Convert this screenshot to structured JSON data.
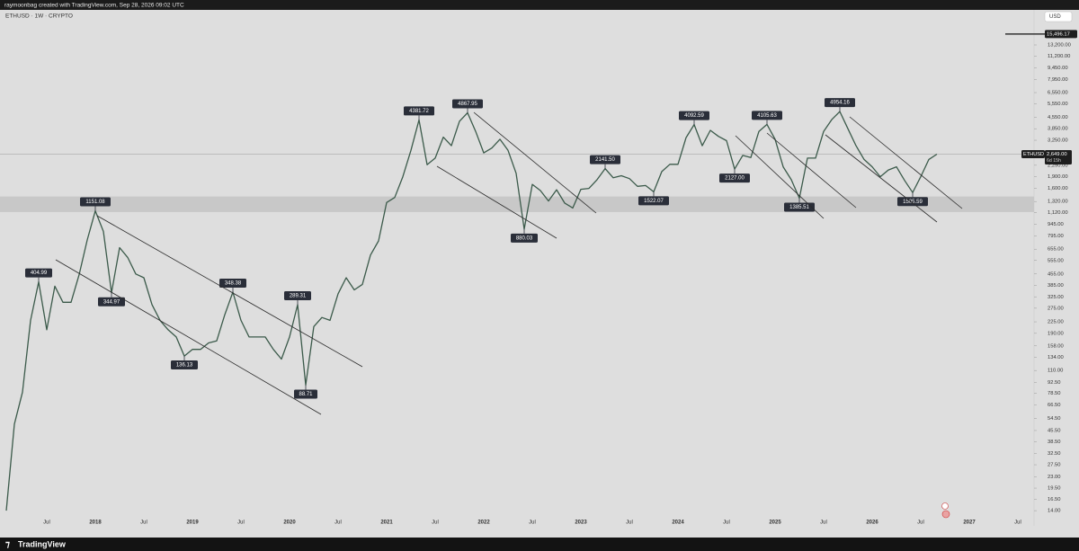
{
  "header": {
    "credit": "raymoonbag created with TradingView.com, Sep 28, 2026 09:02 UTC",
    "currency": "USD"
  },
  "footer": {
    "brand": "TradingView"
  },
  "chart_data": {
    "type": "line",
    "title": "ETHUSD · 1W · CRYPTO",
    "log_scale": true,
    "grid": false,
    "ylim": [
      11.2,
      22400
    ],
    "yticks": [
      {
        "value": 13200,
        "label": "13,200.00"
      },
      {
        "value": 11200,
        "label": "11,200.00"
      },
      {
        "value": 9450,
        "label": "9,450.00"
      },
      {
        "value": 7950,
        "label": "7,950.00"
      },
      {
        "value": 6550,
        "label": "6,550.00"
      },
      {
        "value": 5550,
        "label": "5,550.00"
      },
      {
        "value": 4550,
        "label": "4,550.00"
      },
      {
        "value": 3850,
        "label": "3,850.00"
      },
      {
        "value": 3250,
        "label": "3,250.00"
      },
      {
        "value": 2250,
        "label": "2,250.00"
      },
      {
        "value": 1900,
        "label": "1,900.00"
      },
      {
        "value": 1600,
        "label": "1,600.00"
      },
      {
        "value": 1320,
        "label": "1,320.00"
      },
      {
        "value": 1120,
        "label": "1,120.00"
      },
      {
        "value": 945,
        "label": "945.00"
      },
      {
        "value": 795,
        "label": "795.00"
      },
      {
        "value": 655,
        "label": "655.00"
      },
      {
        "value": 555,
        "label": "555.00"
      },
      {
        "value": 455,
        "label": "455.00"
      },
      {
        "value": 385,
        "label": "385.00"
      },
      {
        "value": 325,
        "label": "325.00"
      },
      {
        "value": 275,
        "label": "275.00"
      },
      {
        "value": 225,
        "label": "225.00"
      },
      {
        "value": 190,
        "label": "190.00"
      },
      {
        "value": 158,
        "label": "158.00"
      },
      {
        "value": 134,
        "label": "134.00"
      },
      {
        "value": 110,
        "label": "110.00"
      },
      {
        "value": 92.5,
        "label": "92.50"
      },
      {
        "value": 78.5,
        "label": "78.50"
      },
      {
        "value": 66.5,
        "label": "66.50"
      },
      {
        "value": 54.5,
        "label": "54.50"
      },
      {
        "value": 45.5,
        "label": "45.50"
      },
      {
        "value": 38.5,
        "label": "38.50"
      },
      {
        "value": 32.5,
        "label": "32.50"
      },
      {
        "value": 27.5,
        "label": "27.50"
      },
      {
        "value": 23,
        "label": "23.00"
      },
      {
        "value": 19.5,
        "label": "19.50"
      },
      {
        "value": 16.5,
        "label": "16.50"
      },
      {
        "value": 14,
        "label": "14.00"
      }
    ],
    "marker": {
      "value": 15496.17,
      "label": "15,496.17"
    },
    "last_price": {
      "symbol": "ETHUSD",
      "value": 2649,
      "label": "2,649.00",
      "countdown": "6d 15h"
    },
    "support_zone": [
      1130,
      1420
    ],
    "categories": [
      null,
      null,
      null,
      null,
      null,
      "Jul",
      null,
      null,
      null,
      null,
      null,
      "2018",
      null,
      null,
      null,
      null,
      null,
      "Jul",
      null,
      null,
      null,
      null,
      null,
      "2019",
      null,
      null,
      null,
      null,
      null,
      "Jul",
      null,
      null,
      null,
      null,
      null,
      "2020",
      null,
      null,
      null,
      null,
      null,
      "Jul",
      null,
      null,
      null,
      null,
      null,
      "2021",
      null,
      null,
      null,
      null,
      null,
      "Jul",
      null,
      null,
      null,
      null,
      null,
      "2022",
      null,
      null,
      null,
      null,
      null,
      "Jul",
      null,
      null,
      null,
      null,
      null,
      "2023",
      null,
      null,
      null,
      null,
      null,
      "Jul",
      null,
      null,
      null,
      null,
      null,
      "2024",
      null,
      null,
      null,
      null,
      null,
      "Jul",
      null,
      null,
      null,
      null,
      null,
      "2025",
      null,
      null,
      null,
      null,
      null,
      "Jul",
      null,
      null,
      null,
      null,
      null,
      "2026",
      null,
      null,
      null,
      null,
      null,
      "Jul",
      null,
      null,
      null,
      null,
      null,
      "2027",
      null,
      null,
      null,
      null,
      null,
      "Jul"
    ],
    "series": [
      {
        "name": "ETHUSD",
        "color": "#3b5a4a",
        "values": [
          14,
          50,
          80,
          230,
          404.99,
          200,
          380,
          300,
          300,
          450,
          750,
          1151.08,
          850,
          344.97,
          670,
          580,
          455,
          430,
          290,
          230,
          200,
          180,
          136.13,
          150,
          150,
          165,
          170,
          250,
          348.38,
          230,
          180,
          180,
          180,
          150,
          130,
          180,
          289.31,
          88.71,
          210,
          240,
          230,
          340,
          430,
          360,
          390,
          600,
          740,
          1300,
          1400,
          1900,
          2800,
          4381.72,
          2270,
          2500,
          3400,
          3000,
          4300,
          4867.95,
          3700,
          2700,
          2900,
          3300,
          2800,
          2000,
          880.03,
          1700,
          1550,
          1330,
          1570,
          1290,
          1200,
          1580,
          1600,
          1820,
          2141.5,
          1870,
          1930,
          1850,
          1650,
          1670,
          1522.07,
          2050,
          2280,
          2280,
          3380,
          4092.59,
          3000,
          3760,
          3440,
          3230,
          2127,
          2600,
          2520,
          3700,
          4105.63,
          3300,
          2200,
          1820,
          1385.51,
          2500,
          2500,
          3700,
          4400,
          4954.16,
          3850,
          3000,
          2450,
          2200,
          1900,
          2100,
          2200,
          1800,
          1505.59,
          1900,
          2450,
          2649,
          null,
          null,
          null,
          null,
          null,
          null,
          null,
          null,
          null,
          null
        ],
        "value_labels": [
          null,
          null,
          null,
          null,
          "404.99",
          null,
          null,
          null,
          null,
          null,
          null,
          "1151.08",
          null,
          "344.97",
          null,
          null,
          null,
          null,
          null,
          null,
          null,
          null,
          "136.13",
          null,
          null,
          null,
          null,
          null,
          "348.38",
          null,
          null,
          null,
          null,
          null,
          null,
          null,
          "289.31",
          "88.71",
          null,
          null,
          null,
          null,
          null,
          null,
          null,
          null,
          null,
          null,
          null,
          null,
          null,
          "4381.72",
          null,
          null,
          null,
          null,
          null,
          "4867.95",
          null,
          null,
          null,
          null,
          null,
          null,
          "880.03",
          null,
          null,
          null,
          null,
          null,
          null,
          null,
          null,
          null,
          "2141.50",
          null,
          null,
          null,
          null,
          null,
          "1522.07",
          null,
          null,
          null,
          null,
          "4092.59",
          null,
          null,
          null,
          null,
          "2127.00",
          null,
          null,
          null,
          "4105.63",
          null,
          null,
          null,
          "1385.51",
          null,
          null,
          null,
          null,
          "4954.16",
          null,
          null,
          null,
          null,
          null,
          null,
          null,
          null,
          "1505.59",
          null,
          null,
          null,
          null,
          null,
          null,
          null,
          null,
          null,
          null,
          null,
          null,
          null
        ]
      }
    ]
  }
}
